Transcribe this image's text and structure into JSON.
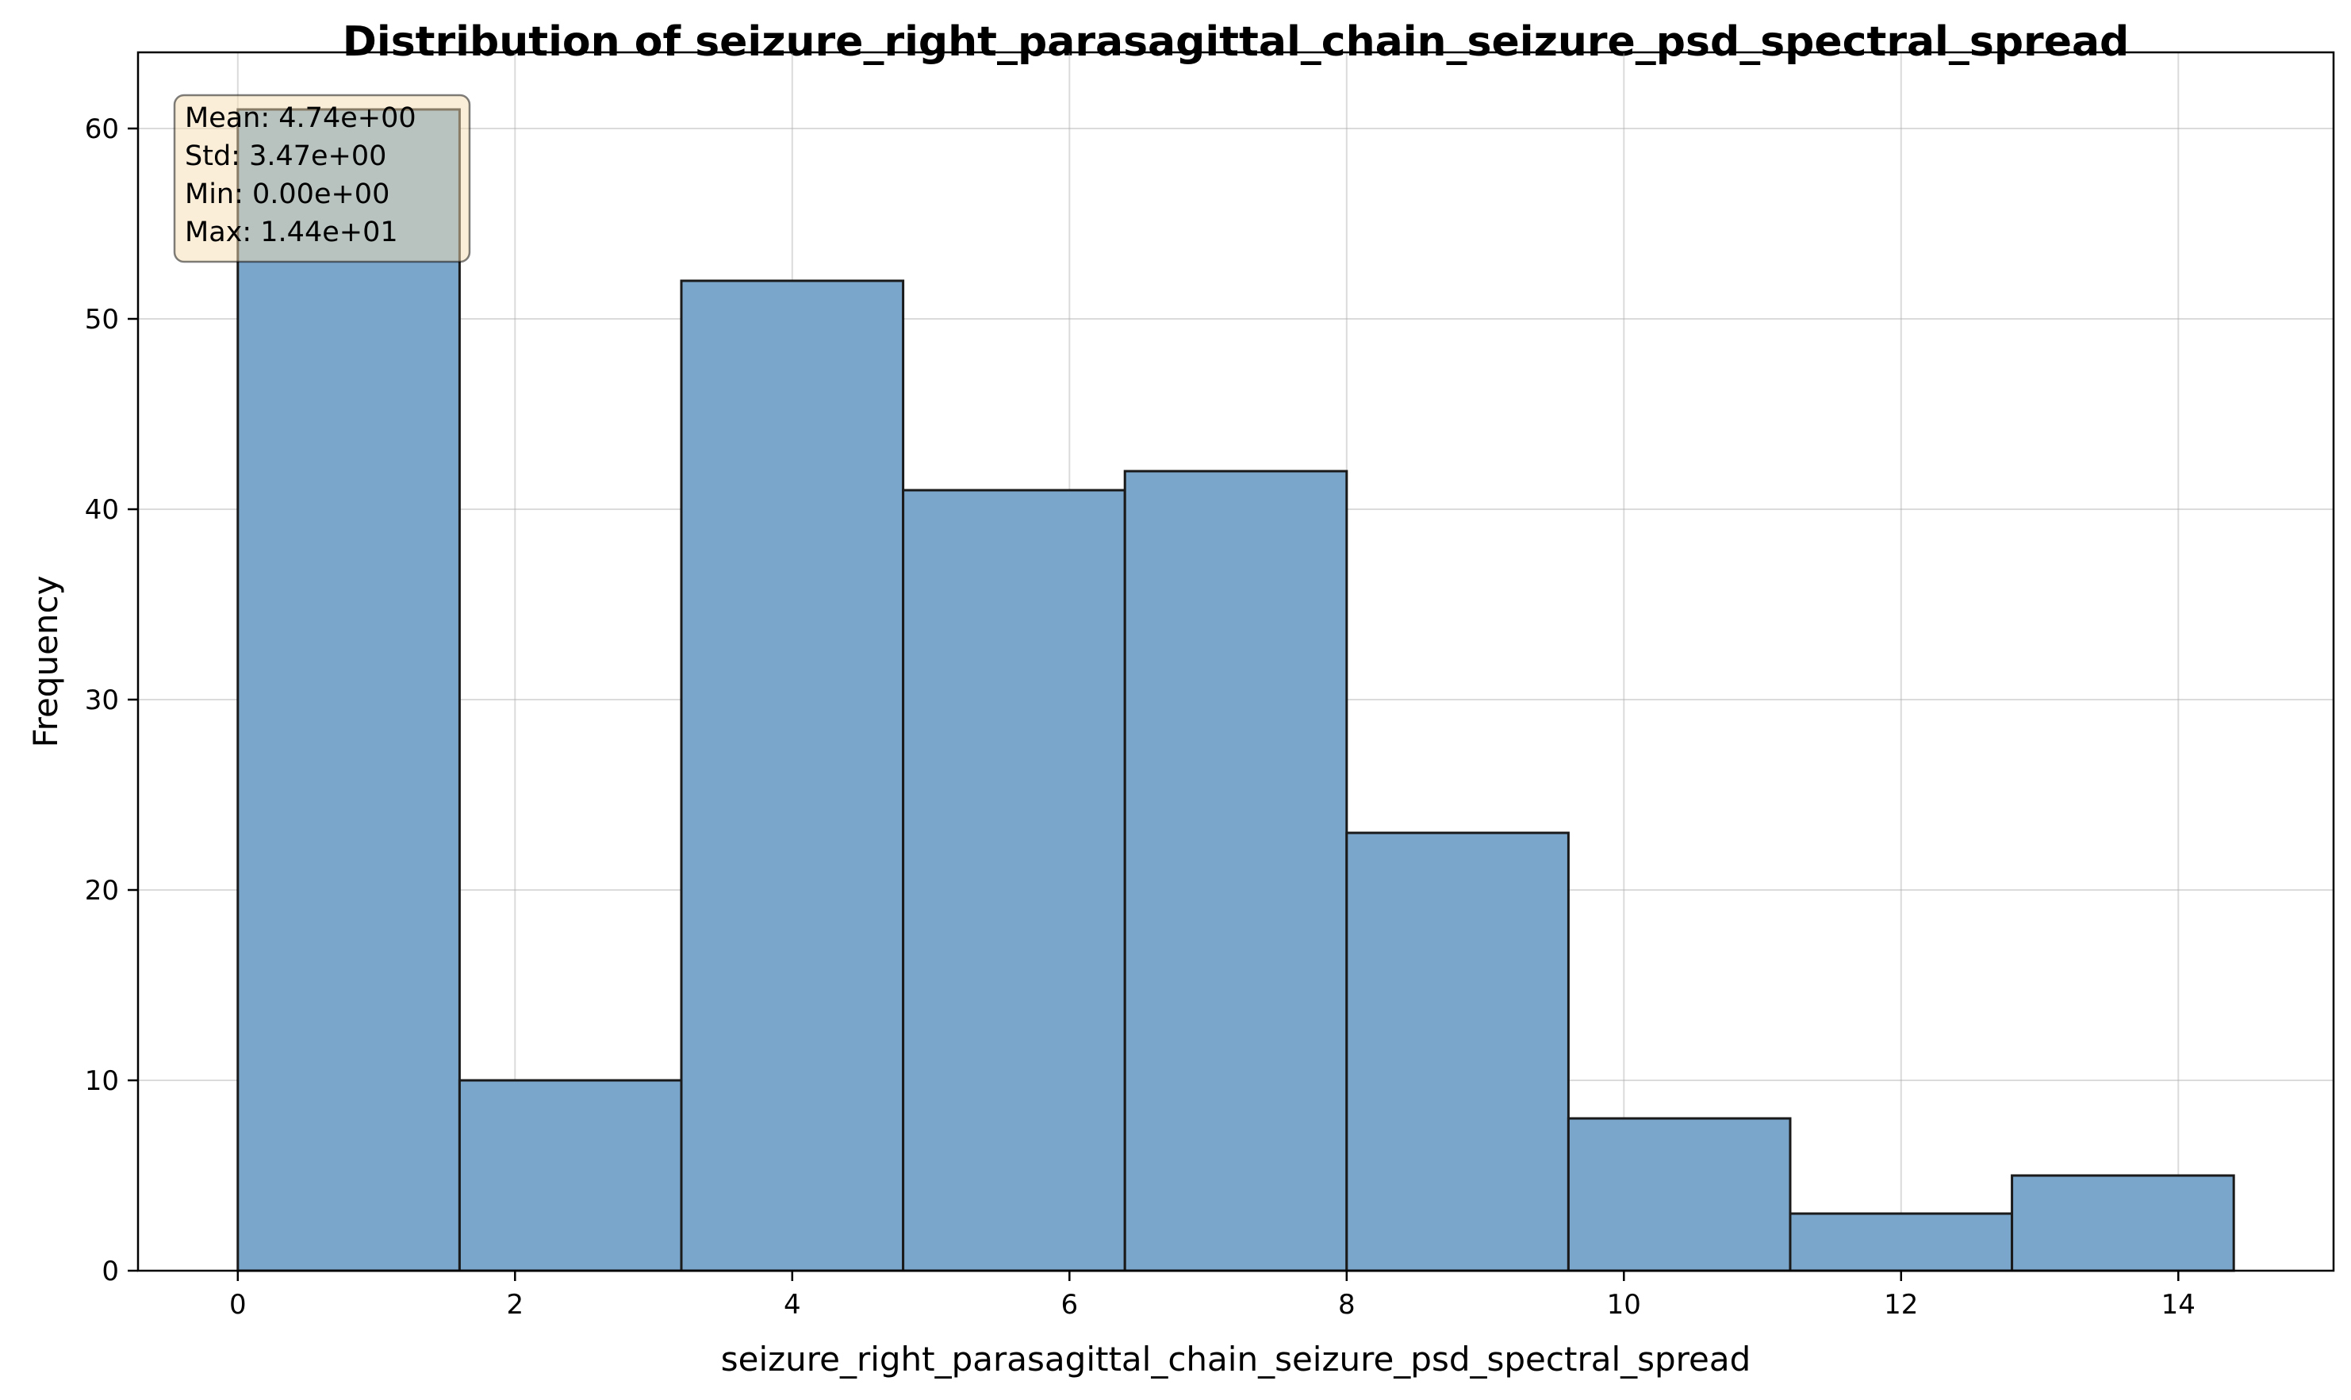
{
  "chart_data": {
    "type": "bar",
    "subtype": "histogram",
    "title": "Distribution of seizure_right_parasagittal_chain_seizure_psd_spectral_spread",
    "xlabel": "seizure_right_parasagittal_chain_seizure_psd_spectral_spread",
    "ylabel": "Frequency",
    "bin_edges": [
      0,
      1.6,
      3.2,
      4.8,
      6.4,
      8.0,
      9.6,
      11.2,
      12.8,
      14.4
    ],
    "values": [
      61,
      10,
      52,
      41,
      42,
      23,
      8,
      3,
      5
    ],
    "xlim": [
      -0.72,
      15.12
    ],
    "ylim": [
      0,
      64
    ],
    "xticks": [
      0,
      2,
      4,
      6,
      8,
      10,
      12,
      14
    ],
    "yticks": [
      0,
      10,
      20,
      30,
      40,
      50,
      60
    ],
    "grid": true,
    "bar_color": "#7ba6cb",
    "edge_color": "#1a1a1a",
    "stats_box": {
      "position": "top-left",
      "lines": [
        "Mean: 4.74e+00",
        "Std: 3.47e+00",
        "Min: 0.00e+00",
        "Max: 1.44e+01"
      ],
      "background": "#f5deb3"
    }
  }
}
